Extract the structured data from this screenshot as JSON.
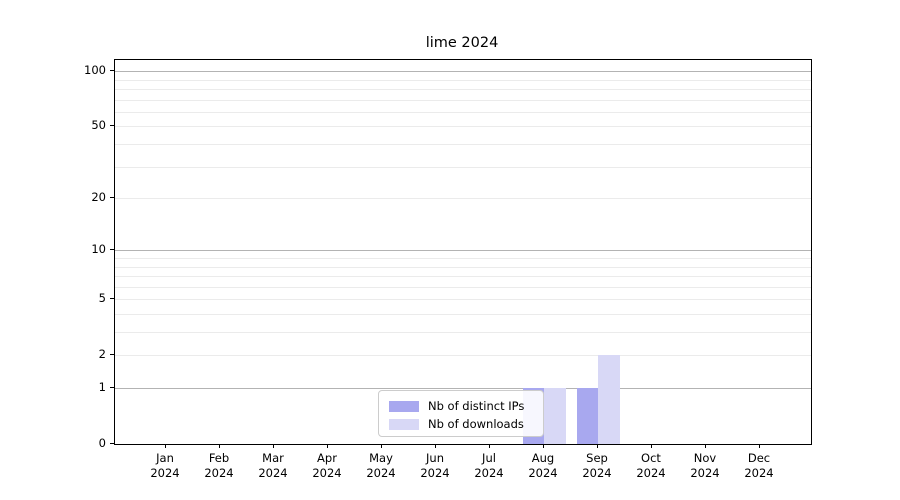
{
  "title": "lime 2024",
  "chart_data": {
    "type": "bar",
    "title": "lime 2024",
    "categories": [
      "Jan",
      "Feb",
      "Mar",
      "Apr",
      "May",
      "Jun",
      "Jul",
      "Aug",
      "Sep",
      "Oct",
      "Nov",
      "Dec"
    ],
    "year_label": "2024",
    "series": [
      {
        "name": "Nb of distinct IPs",
        "color": "#a8a8ef",
        "values": [
          0,
          0,
          0,
          0,
          0,
          0,
          0,
          1,
          1,
          0,
          0,
          0
        ]
      },
      {
        "name": "Nb of downloads",
        "color": "#d8d8f6",
        "values": [
          0,
          0,
          0,
          0,
          0,
          0,
          0,
          1,
          2,
          0,
          0,
          0
        ]
      }
    ],
    "yscale": "log1p",
    "ylim": [
      0,
      115
    ],
    "yticks": [
      0,
      1,
      2,
      5,
      10,
      20,
      50,
      100
    ],
    "major_gridlines": [
      1,
      10,
      100
    ],
    "minor_gridlines": [
      2,
      3,
      4,
      5,
      6,
      7,
      8,
      9,
      20,
      30,
      40,
      50,
      60,
      70,
      80,
      90
    ],
    "grid": true,
    "legend_position": "lower center"
  },
  "legend": {
    "items": [
      {
        "label": "Nb of distinct IPs",
        "color": "#a8a8ef"
      },
      {
        "label": "Nb of downloads",
        "color": "#d8d8f6"
      }
    ]
  },
  "colors": {
    "spine": "#000000",
    "major_grid": "#b3b3b3",
    "minor_grid": "#ebebeb",
    "background": "#ffffff",
    "text": "#000000"
  }
}
